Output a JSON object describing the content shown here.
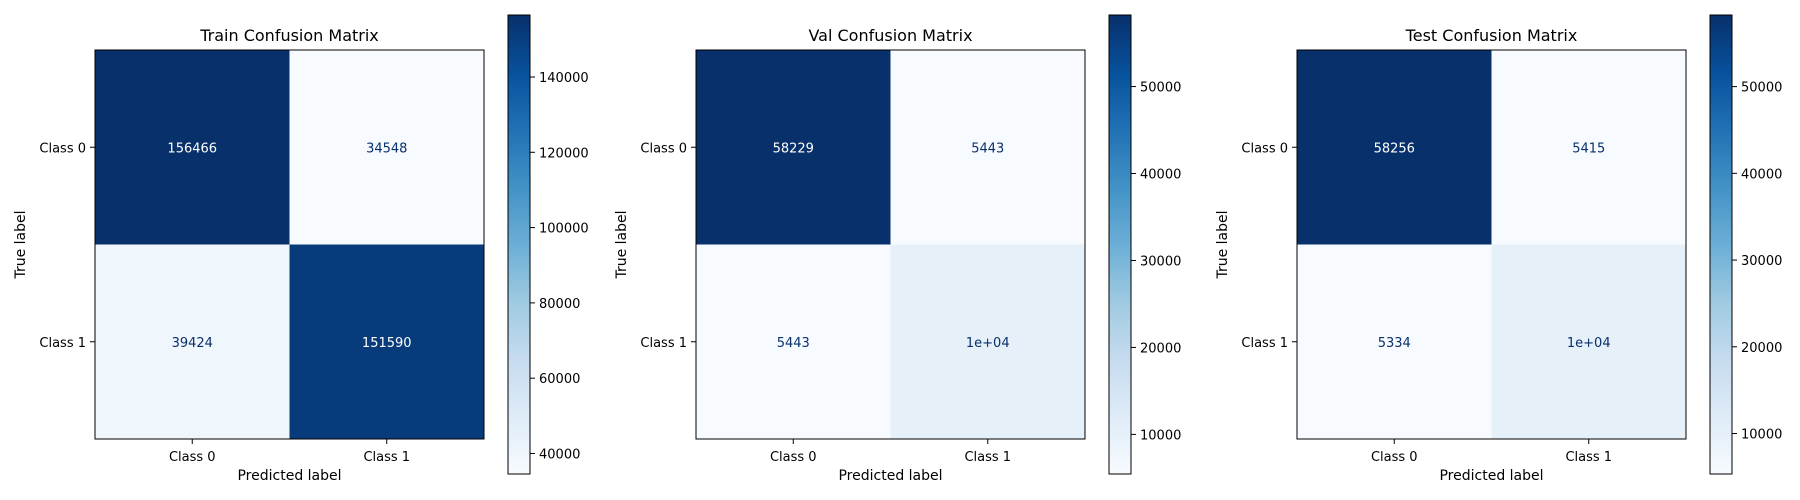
{
  "chart_data": [
    {
      "type": "heatmap",
      "title": "Train Confusion Matrix",
      "xlabel": "Predicted label",
      "ylabel": "True label",
      "x_categories": [
        "Class 0",
        "Class 1"
      ],
      "y_categories": [
        "Class 0",
        "Class 1"
      ],
      "values": [
        [
          156466,
          34548
        ],
        [
          39424,
          151590
        ]
      ],
      "cell_labels": [
        [
          "156466",
          "34548"
        ],
        [
          "39424",
          "151590"
        ]
      ],
      "colormap": "Blues",
      "color_range": [
        34548,
        156466
      ],
      "colorbar_ticks": [
        40000,
        60000,
        80000,
        100000,
        120000,
        140000
      ],
      "colorbar_tick_labels": [
        "40000",
        "60000",
        "80000",
        "100000",
        "120000",
        "140000"
      ]
    },
    {
      "type": "heatmap",
      "title": "Val Confusion Matrix",
      "xlabel": "Predicted label",
      "ylabel": "True label",
      "x_categories": [
        "Class 0",
        "Class 1"
      ],
      "y_categories": [
        "Class 0",
        "Class 1"
      ],
      "values": [
        [
          58229,
          5443
        ],
        [
          5443,
          10000
        ]
      ],
      "cell_labels": [
        [
          "58229",
          "5443"
        ],
        [
          "5443",
          "1e+04"
        ]
      ],
      "colormap": "Blues",
      "color_range": [
        5443,
        58229
      ],
      "colorbar_ticks": [
        10000,
        20000,
        30000,
        40000,
        50000
      ],
      "colorbar_tick_labels": [
        "10000",
        "20000",
        "30000",
        "40000",
        "50000"
      ]
    },
    {
      "type": "heatmap",
      "title": "Test Confusion Matrix",
      "xlabel": "Predicted label",
      "ylabel": "True label",
      "x_categories": [
        "Class 0",
        "Class 1"
      ],
      "y_categories": [
        "Class 0",
        "Class 1"
      ],
      "values": [
        [
          58256,
          5415
        ],
        [
          5334,
          10000
        ]
      ],
      "cell_labels": [
        [
          "58256",
          "5415"
        ],
        [
          "5334",
          "1e+04"
        ]
      ],
      "colormap": "Blues",
      "color_range": [
        5334,
        58256
      ],
      "colorbar_ticks": [
        10000,
        20000,
        30000,
        40000,
        50000
      ],
      "colorbar_tick_labels": [
        "10000",
        "20000",
        "30000",
        "40000",
        "50000"
      ]
    }
  ]
}
